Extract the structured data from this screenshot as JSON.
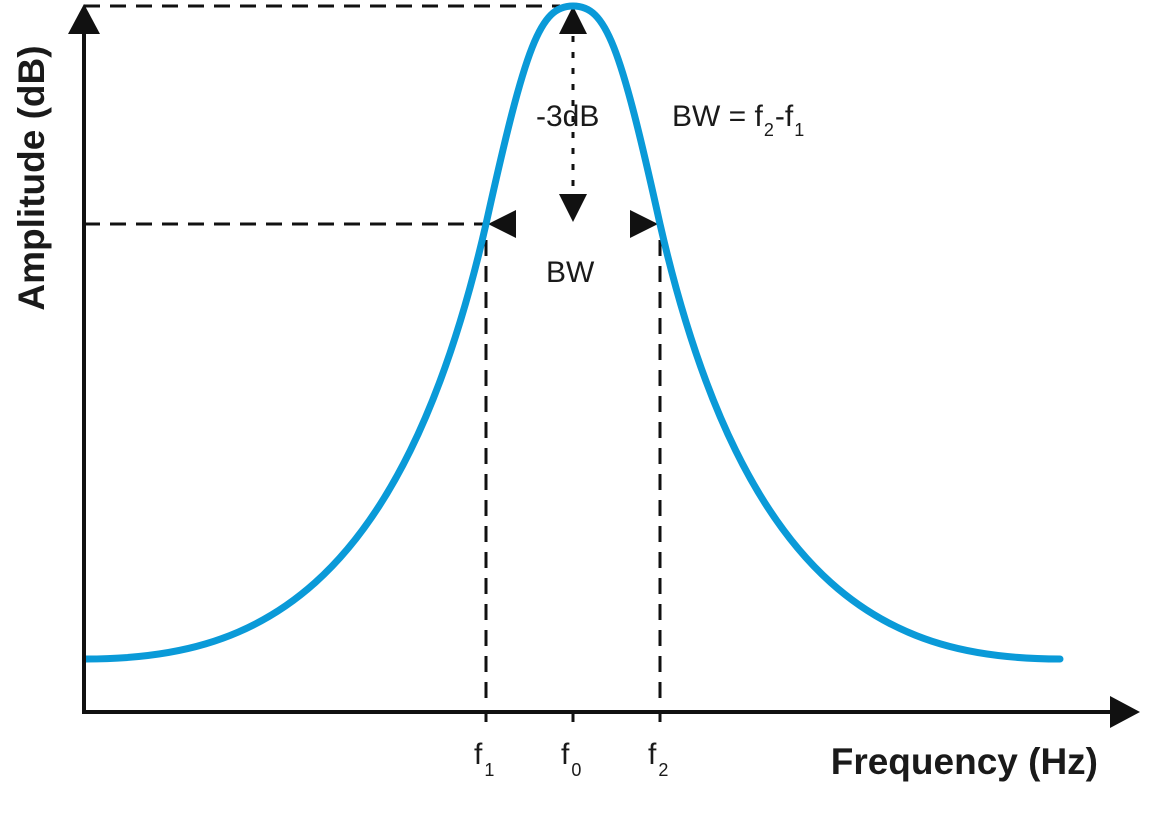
{
  "axes": {
    "x_title": "Frequency (Hz)",
    "y_title": "Amplitude (dB)"
  },
  "ticks": [
    {
      "base": "f",
      "sub": "1"
    },
    {
      "base": "f",
      "sub": "0"
    },
    {
      "base": "f",
      "sub": "2"
    }
  ],
  "annotations": {
    "minus_3db": "-3dB",
    "bw": "BW",
    "formula": {
      "prefix": "BW = ",
      "term1_base": "f",
      "term1_sub": "2",
      "separator": "-",
      "term2_base": "f",
      "term2_sub": "1"
    }
  },
  "colors": {
    "curve": "#0a9ad8",
    "axis": "#111111"
  }
}
